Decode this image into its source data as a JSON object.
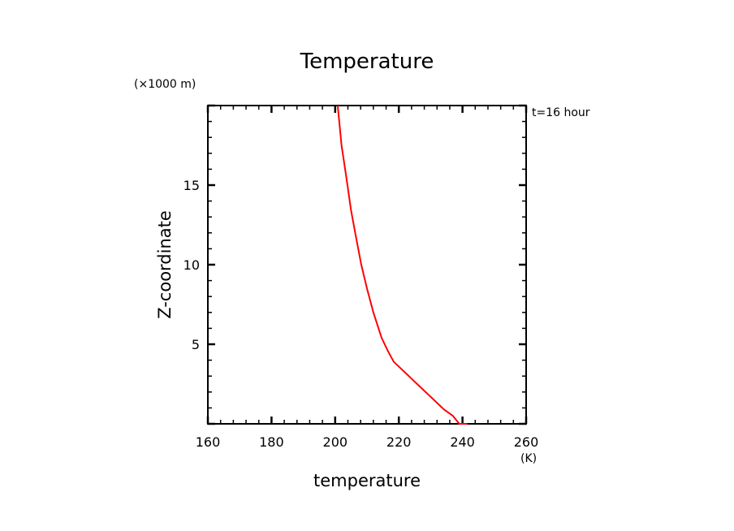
{
  "chart_data": {
    "type": "line",
    "title": "Temperature",
    "xlabel": "temperature",
    "ylabel": "Z-coordinate",
    "x_unit": "(K)",
    "y_unit": "(×1000 m)",
    "annotation": "t=16 hour",
    "xlim": [
      160,
      260
    ],
    "ylim": [
      0,
      20
    ],
    "x_ticks": [
      160,
      180,
      200,
      220,
      240,
      260
    ],
    "y_ticks": [
      5,
      10,
      15
    ],
    "grid": false,
    "series": [
      {
        "name": "temperature",
        "color": "#ff0000",
        "x": [
          241.5,
          239.0,
          237.0,
          234.2,
          218.4,
          216.5,
          214.6,
          212.0,
          210.0,
          208.2,
          206.3,
          205.0,
          203.5,
          202.0,
          200.8
        ],
        "y": [
          0.0,
          0.0,
          0.5,
          0.9,
          3.9,
          4.6,
          5.4,
          7.0,
          8.5,
          10.0,
          12.0,
          13.4,
          15.5,
          17.5,
          20.0
        ]
      }
    ]
  }
}
